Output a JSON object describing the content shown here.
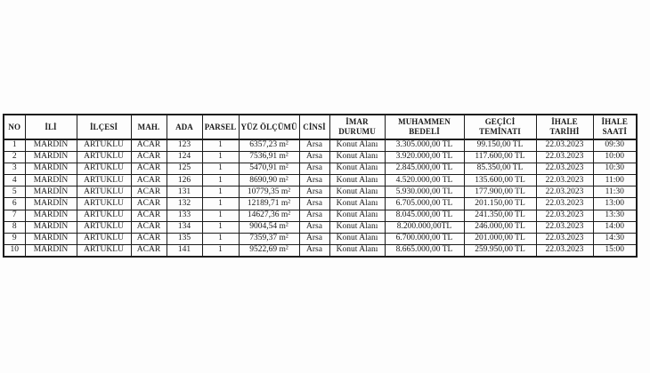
{
  "page": {
    "background_color": "#fdfdfd",
    "text_color": "#1a1a1a",
    "border_color": "#1c1c1c"
  },
  "table": {
    "columns": [
      {
        "label": "NO"
      },
      {
        "label": "İLİ"
      },
      {
        "label": "İLÇESİ"
      },
      {
        "label": "MAH."
      },
      {
        "label": "ADA"
      },
      {
        "label": "PARSEL"
      },
      {
        "label": "YÜZ ÖLÇÜMÜ"
      },
      {
        "label": "CİNSİ"
      },
      {
        "label": "İMAR DURUMU"
      },
      {
        "label": "MUHAMMEN BEDELİ"
      },
      {
        "label": "GEÇİCİ TEMİNATI"
      },
      {
        "label": "İHALE TARİHİ"
      },
      {
        "label": "İHALE SAATİ"
      }
    ],
    "rows": [
      [
        "1",
        "MARDİN",
        "ARTUKLU",
        "ACAR",
        "123",
        "1",
        "6357,23 m²",
        "Arsa",
        "Konut Alanı",
        "3.305.000,00 TL",
        "99.150,00 TL",
        "22.03.2023",
        "09:30"
      ],
      [
        "2",
        "MARDİN",
        "ARTUKLU",
        "ACAR",
        "124",
        "1",
        "7536,91 m²",
        "Arsa",
        "Konut Alanı",
        "3.920.000,00 TL",
        "117.600,00 TL",
        "22.03.2023",
        "10:00"
      ],
      [
        "3",
        "MARDİN",
        "ARTUKLU",
        "ACAR",
        "125",
        "1",
        "5470,91 m²",
        "Arsa",
        "Konut Alanı",
        "2.845.000,00 TL",
        "85.350,00 TL",
        "22.03.2023",
        "10:30"
      ],
      [
        "4",
        "MARDİN",
        "ARTUKLU",
        "ACAR",
        "126",
        "1",
        "8690,90 m²",
        "Arsa",
        "Konut Alanı",
        "4.520.000,00 TL",
        "135.600,00 TL",
        "22.03.2023",
        "11:00"
      ],
      [
        "5",
        "MARDİN",
        "ARTUKLU",
        "ACAR",
        "131",
        "1",
        "10779,35 m²",
        "Arsa",
        "Konut Alanı",
        "5.930.000,00 TL",
        "177.900,00 TL",
        "22.03.2023",
        "11:30"
      ],
      [
        "6",
        "MARDİN",
        "ARTUKLU",
        "ACAR",
        "132",
        "1",
        "12189,71 m²",
        "Arsa",
        "Konut Alanı",
        "6.705.000,00 TL",
        "201.150,00 TL",
        "22.03.2023",
        "13:00"
      ],
      [
        "7",
        "MARDİN",
        "ARTUKLU",
        "ACAR",
        "133",
        "1",
        "14627,36 m²",
        "Arsa",
        "Konut Alanı",
        "8.045.000,00 TL",
        "241.350,00 TL",
        "22.03.2023",
        "13:30"
      ],
      [
        "8",
        "MARDİN",
        "ARTUKLU",
        "ACAR",
        "134",
        "1",
        "9004,54 m²",
        "Arsa",
        "Konut Alanı",
        "8.200.000,00TL",
        "246.000,00 TL",
        "22.03.2023",
        "14:00"
      ],
      [
        "9",
        "MARDİN",
        "ARTUKLU",
        "ACAR",
        "135",
        "1",
        "7359,37 m²",
        "Arsa",
        "Konut Alanı",
        "6.700.000,00 TL",
        "201.000,00 TL",
        "22.03.2023",
        "14:30"
      ],
      [
        "10",
        "MARDİN",
        "ARTUKLU",
        "ACAR",
        "141",
        "1",
        "9522,69 m²",
        "Arsa",
        "Konut Alanı",
        "8.665.000,00 TL",
        "259.950,00 TL",
        "22.03.2023",
        "15:00"
      ]
    ]
  }
}
